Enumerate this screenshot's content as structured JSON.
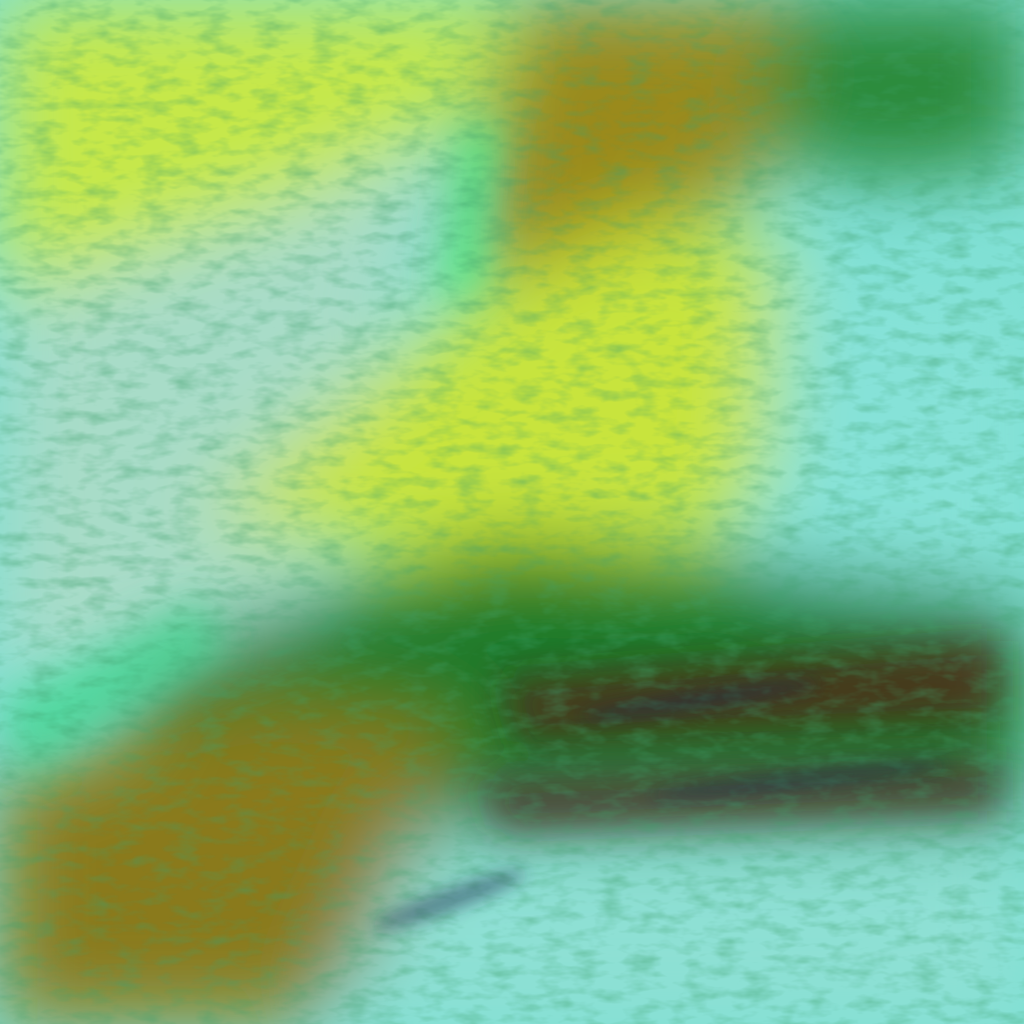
{
  "image": {
    "palette": {
      "cyan_light": "#7fe0d4",
      "cyan_pale": "#a8dcc8",
      "yellow_green": "#c6e84a",
      "olive_brown": "#9a8a1c",
      "dark_green": "#1f7a2a",
      "bright_green": "#3cf07a",
      "dark_red": "#5a1a14",
      "navy": "#1a2a50"
    }
  }
}
